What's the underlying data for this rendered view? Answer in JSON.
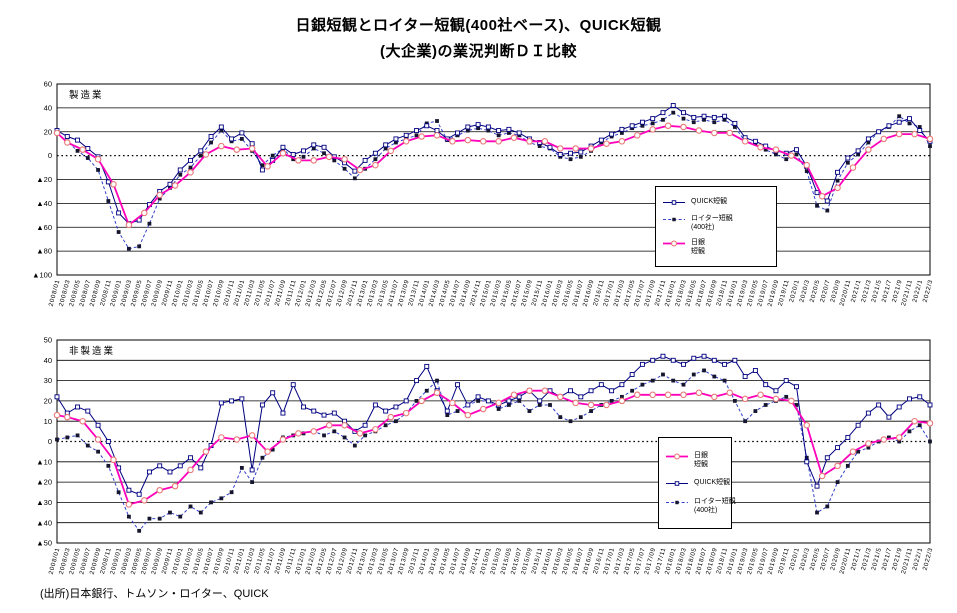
{
  "title": {
    "line1": "日銀短観とロイター短観(400社ベース)、QUICK短観",
    "line2": "(大企業)の業況判断ＤＩ比較"
  },
  "source": "(出所)日本銀行、トムソン・ロイター、QUICK",
  "colors": {
    "quick": "#000080",
    "reuters_line": "#3340cc",
    "reuters_marker": "#15152e",
    "boj_line": "#ff00bb",
    "boj_marker": "#e87878",
    "grid": "#000000"
  },
  "chart_data": [
    {
      "type": "line",
      "panel_label": "製造業",
      "ylim": [
        -100,
        60
      ],
      "ystep": 20,
      "grid": true,
      "negative_prefix": "▲",
      "legend_position": "right-middle",
      "categories": [
        "2008/01",
        "2008/03",
        "2008/05",
        "2008/07",
        "2008/09",
        "2008/11",
        "2009/01",
        "2009/03",
        "2009/05",
        "2009/07",
        "2009/09",
        "2009/11",
        "2010/01",
        "2010/03",
        "2010/05",
        "2010/07",
        "2010/09",
        "2010/11",
        "2011/01",
        "2011/03",
        "2011/05",
        "2011/07",
        "2011/09",
        "2011/11",
        "2012/01",
        "2012/03",
        "2012/05",
        "2012/07",
        "2012/09",
        "2012/11",
        "2013/01",
        "2013/03",
        "2013/05",
        "2013/07",
        "2013/09",
        "2013/11",
        "2014/01",
        "2014/03",
        "2014/05",
        "2014/07",
        "2014/09",
        "2014/11",
        "2015/01",
        "2015/03",
        "2015/05",
        "2015/07",
        "2015/09",
        "2015/11",
        "2016/01",
        "2016/03",
        "2016/05",
        "2016/07",
        "2016/09",
        "2016/11",
        "2017/01",
        "2017/03",
        "2017/05",
        "2017/07",
        "2017/09",
        "2017/11",
        "2018/01",
        "2018/03",
        "2018/05",
        "2018/07",
        "2018/09",
        "2018/11",
        "2019/01",
        "2019/03",
        "2019/05",
        "2019/07",
        "2019/09",
        "2019/11",
        "2020/1",
        "2020/3",
        "2020/5",
        "2020/7",
        "2020/9",
        "2020/11",
        "2021/1",
        "2021/3",
        "2021/5",
        "2021/7",
        "2021/9",
        "2021/11",
        "2022/1",
        "2022/3"
      ],
      "series": [
        {
          "name": "QUICK短観",
          "color": "#000080",
          "marker": "square-open",
          "dash": null,
          "width": 1,
          "values": [
            21,
            16,
            13,
            6,
            -1,
            -22,
            -48,
            -57,
            -54,
            -41,
            -30,
            -24,
            -12,
            -4,
            4,
            16,
            24,
            14,
            19,
            10,
            -12,
            -4,
            7,
            1,
            4,
            9,
            7,
            -1,
            -6,
            -13,
            -4,
            2,
            9,
            14,
            17,
            21,
            25,
            21,
            14,
            19,
            24,
            26,
            24,
            21,
            22,
            19,
            14,
            11,
            7,
            1,
            2,
            3,
            8,
            13,
            18,
            22,
            25,
            28,
            31,
            36,
            42,
            36,
            32,
            33,
            32,
            33,
            27,
            15,
            12,
            8,
            4,
            2,
            5,
            -9,
            -31,
            -38,
            -14,
            -2,
            4,
            14,
            20,
            25,
            28,
            31,
            21,
            12
          ]
        },
        {
          "name": "ロイター短観(400社)",
          "color": "#3340cc",
          "marker": "square-filled",
          "marker_color": "#15152e",
          "dash": "3,2.2",
          "width": 1,
          "values": [
            19,
            12,
            4,
            -2,
            -12,
            -38,
            -64,
            -78,
            -76,
            -57,
            -36,
            -27,
            -16,
            -10,
            0,
            11,
            21,
            12,
            14,
            4,
            -8,
            0,
            6,
            -3,
            -1,
            6,
            2,
            -4,
            -11,
            -19,
            -11,
            -3,
            6,
            11,
            14,
            17,
            27,
            29,
            13,
            17,
            21,
            23,
            21,
            17,
            19,
            17,
            11,
            8,
            6,
            -1,
            -3,
            -1,
            4,
            11,
            16,
            19,
            23,
            25,
            27,
            30,
            36,
            31,
            28,
            30,
            28,
            30,
            24,
            12,
            10,
            5,
            1,
            -3,
            1,
            -13,
            -42,
            -46,
            -21,
            -6,
            1,
            11,
            20,
            24,
            33,
            27,
            24,
            8
          ]
        },
        {
          "name": "日銀短観",
          "color": "#ff00bb",
          "marker": "circle-open",
          "marker_color": "#e87878",
          "dash": null,
          "width": 1.8,
          "points": [
            [
              0,
              19
            ],
            [
              1,
              11
            ],
            [
              2.5,
              5
            ],
            [
              4,
              -3
            ],
            [
              5.5,
              -24
            ],
            [
              7,
              -58
            ],
            [
              8.5,
              -48
            ],
            [
              10,
              -33
            ],
            [
              11.5,
              -25
            ],
            [
              13,
              -14
            ],
            [
              14.5,
              1
            ],
            [
              16,
              8
            ],
            [
              17.5,
              5
            ],
            [
              19,
              6
            ],
            [
              20.5,
              -9
            ],
            [
              22,
              2
            ],
            [
              23.5,
              -4
            ],
            [
              25,
              -4
            ],
            [
              26.5,
              -1
            ],
            [
              28,
              -3
            ],
            [
              29.5,
              -12
            ],
            [
              31,
              -8
            ],
            [
              32.5,
              4
            ],
            [
              34,
              12
            ],
            [
              35.5,
              16
            ],
            [
              37,
              17
            ],
            [
              38.5,
              12
            ],
            [
              40,
              13
            ],
            [
              41.5,
              12
            ],
            [
              43,
              12
            ],
            [
              44.5,
              15
            ],
            [
              46,
              12
            ],
            [
              47.5,
              12
            ],
            [
              49,
              6
            ],
            [
              50.5,
              6
            ],
            [
              52,
              6
            ],
            [
              53.5,
              10
            ],
            [
              55,
              12
            ],
            [
              56.5,
              17
            ],
            [
              58,
              22
            ],
            [
              59.5,
              25
            ],
            [
              61,
              24
            ],
            [
              62.5,
              21
            ],
            [
              64,
              19
            ],
            [
              65.5,
              19
            ],
            [
              67,
              12
            ],
            [
              68.5,
              7
            ],
            [
              70,
              5
            ],
            [
              71.5,
              0
            ],
            [
              73,
              -8
            ],
            [
              74.5,
              -34
            ],
            [
              76,
              -27
            ],
            [
              77.5,
              -10
            ],
            [
              79,
              5
            ],
            [
              80.5,
              14
            ],
            [
              82,
              18
            ],
            [
              83.5,
              18
            ],
            [
              85,
              14
            ]
          ]
        }
      ],
      "legend": {
        "entries": [
          {
            "series": 0,
            "label_lines": [
              "QUICK短観"
            ]
          },
          {
            "series": 1,
            "label_lines": [
              "ロイター短観",
              "(400社)"
            ]
          },
          {
            "series": 2,
            "label_lines": [
              "日銀",
              "短観"
            ]
          }
        ]
      }
    },
    {
      "type": "line",
      "panel_label": "非製造業",
      "ylim": [
        -50,
        50
      ],
      "ystep": 10,
      "grid": true,
      "negative_prefix": "▲",
      "legend_position": "right-middle",
      "categories": [
        "2008/01",
        "2008/03",
        "2008/05",
        "2008/07",
        "2008/09",
        "2008/11",
        "2009/01",
        "2009/03",
        "2009/05",
        "2009/07",
        "2009/09",
        "2009/11",
        "2010/01",
        "2010/03",
        "2010/05",
        "2010/07",
        "2010/09",
        "2010/11",
        "2011/01",
        "2011/03",
        "2011/05",
        "2011/07",
        "2011/09",
        "2011/11",
        "2012/01",
        "2012/03",
        "2012/05",
        "2012/07",
        "2012/09",
        "2012/11",
        "2013/01",
        "2013/03",
        "2013/05",
        "2013/07",
        "2013/09",
        "2013/11",
        "2014/01",
        "2014/03",
        "2014/05",
        "2014/07",
        "2014/09",
        "2014/11",
        "2015/01",
        "2015/03",
        "2015/05",
        "2015/07",
        "2015/09",
        "2015/11",
        "2016/01",
        "2016/03",
        "2016/05",
        "2016/07",
        "2016/09",
        "2016/11",
        "2017/01",
        "2017/03",
        "2017/05",
        "2017/07",
        "2017/09",
        "2017/11",
        "2018/01",
        "2018/03",
        "2018/05",
        "2018/07",
        "2018/09",
        "2018/11",
        "2019/01",
        "2019/03",
        "2019/05",
        "2019/07",
        "2019/09",
        "2019/11",
        "2020/1",
        "2020/3",
        "2020/5",
        "2020/7",
        "2020/9",
        "2020/11",
        "2021/1",
        "2021/3",
        "2021/5",
        "2021/7",
        "2021/9",
        "2021/11",
        "2022/1",
        "2022/3"
      ],
      "series": [
        {
          "name": "QUICK短観",
          "color": "#000080",
          "marker": "square-open",
          "dash": null,
          "width": 1,
          "values": [
            22,
            14,
            17,
            15,
            8,
            0,
            -13,
            -24,
            -26,
            -15,
            -12,
            -15,
            -12,
            -8,
            -13,
            -2,
            19,
            20,
            21,
            -14,
            18,
            24,
            14,
            28,
            17,
            15,
            13,
            14,
            10,
            5,
            8,
            18,
            15,
            17,
            20,
            30,
            37,
            25,
            15,
            28,
            18,
            22,
            20,
            18,
            20,
            22,
            25,
            20,
            25,
            22,
            25,
            22,
            25,
            28,
            25,
            28,
            33,
            38,
            40,
            42,
            40,
            38,
            41,
            42,
            40,
            38,
            40,
            32,
            35,
            28,
            25,
            30,
            27,
            -10,
            -22,
            -8,
            -3,
            2,
            8,
            14,
            18,
            12,
            17,
            21,
            22,
            18
          ]
        },
        {
          "name": "ロイター短観(400社)",
          "color": "#3340cc",
          "marker": "square-filled",
          "marker_color": "#15152e",
          "dash": "3,2.2",
          "width": 1,
          "values": [
            1,
            2,
            3,
            -2,
            -5,
            -12,
            -25,
            -37,
            -44,
            -38,
            -38,
            -35,
            -37,
            -32,
            -35,
            -30,
            -28,
            -25,
            -13,
            -20,
            -8,
            -4,
            2,
            3,
            4,
            5,
            3,
            5,
            2,
            -2,
            3,
            5,
            8,
            10,
            14,
            20,
            25,
            30,
            13,
            15,
            18,
            20,
            20,
            16,
            18,
            20,
            15,
            18,
            18,
            12,
            10,
            12,
            15,
            18,
            20,
            22,
            25,
            28,
            30,
            33,
            30,
            28,
            33,
            35,
            32,
            30,
            20,
            10,
            15,
            18,
            20,
            22,
            18,
            -8,
            -35,
            -32,
            -20,
            -12,
            -5,
            -3,
            0,
            2,
            0,
            5,
            8,
            0
          ]
        },
        {
          "name": "日銀短観",
          "color": "#ff00bb",
          "marker": "circle-open",
          "marker_color": "#e87878",
          "dash": null,
          "width": 1.8,
          "points": [
            [
              0,
              13
            ],
            [
              1,
              12
            ],
            [
              2.5,
              10
            ],
            [
              4,
              1
            ],
            [
              5.5,
              -9
            ],
            [
              7,
              -31
            ],
            [
              8.5,
              -29
            ],
            [
              10,
              -24
            ],
            [
              11.5,
              -22
            ],
            [
              13,
              -14
            ],
            [
              14.5,
              -5
            ],
            [
              16,
              2
            ],
            [
              17.5,
              1
            ],
            [
              19,
              3
            ],
            [
              20.5,
              -5
            ],
            [
              22,
              1
            ],
            [
              23.5,
              4
            ],
            [
              25,
              5
            ],
            [
              26.5,
              8
            ],
            [
              28,
              8
            ],
            [
              29.5,
              4
            ],
            [
              31,
              6
            ],
            [
              32.5,
              12
            ],
            [
              34,
              14
            ],
            [
              35.5,
              20
            ],
            [
              37,
              24
            ],
            [
              38.5,
              19
            ],
            [
              40,
              13
            ],
            [
              41.5,
              16
            ],
            [
              43,
              19
            ],
            [
              44.5,
              23
            ],
            [
              46,
              25
            ],
            [
              47.5,
              25
            ],
            [
              49,
              22
            ],
            [
              50.5,
              19
            ],
            [
              52,
              18
            ],
            [
              53.5,
              18
            ],
            [
              55,
              20
            ],
            [
              56.5,
              23
            ],
            [
              58,
              23
            ],
            [
              59.5,
              23
            ],
            [
              61,
              23
            ],
            [
              62.5,
              24
            ],
            [
              64,
              22
            ],
            [
              65.5,
              24
            ],
            [
              67,
              21
            ],
            [
              68.5,
              23
            ],
            [
              70,
              21
            ],
            [
              71.5,
              20
            ],
            [
              73,
              8
            ],
            [
              74.5,
              -17
            ],
            [
              76,
              -12
            ],
            [
              77.5,
              -5
            ],
            [
              79,
              -1
            ],
            [
              80.5,
              1
            ],
            [
              82,
              2
            ],
            [
              83.5,
              10
            ],
            [
              85,
              9
            ]
          ]
        }
      ],
      "legend": {
        "entries": [
          {
            "series": 2,
            "label_lines": [
              "日銀",
              "短観"
            ]
          },
          {
            "series": 0,
            "label_lines": [
              "QUICK短観"
            ]
          },
          {
            "series": 1,
            "label_lines": [
              "ロイター短観",
              "(400社)"
            ]
          }
        ]
      }
    }
  ]
}
